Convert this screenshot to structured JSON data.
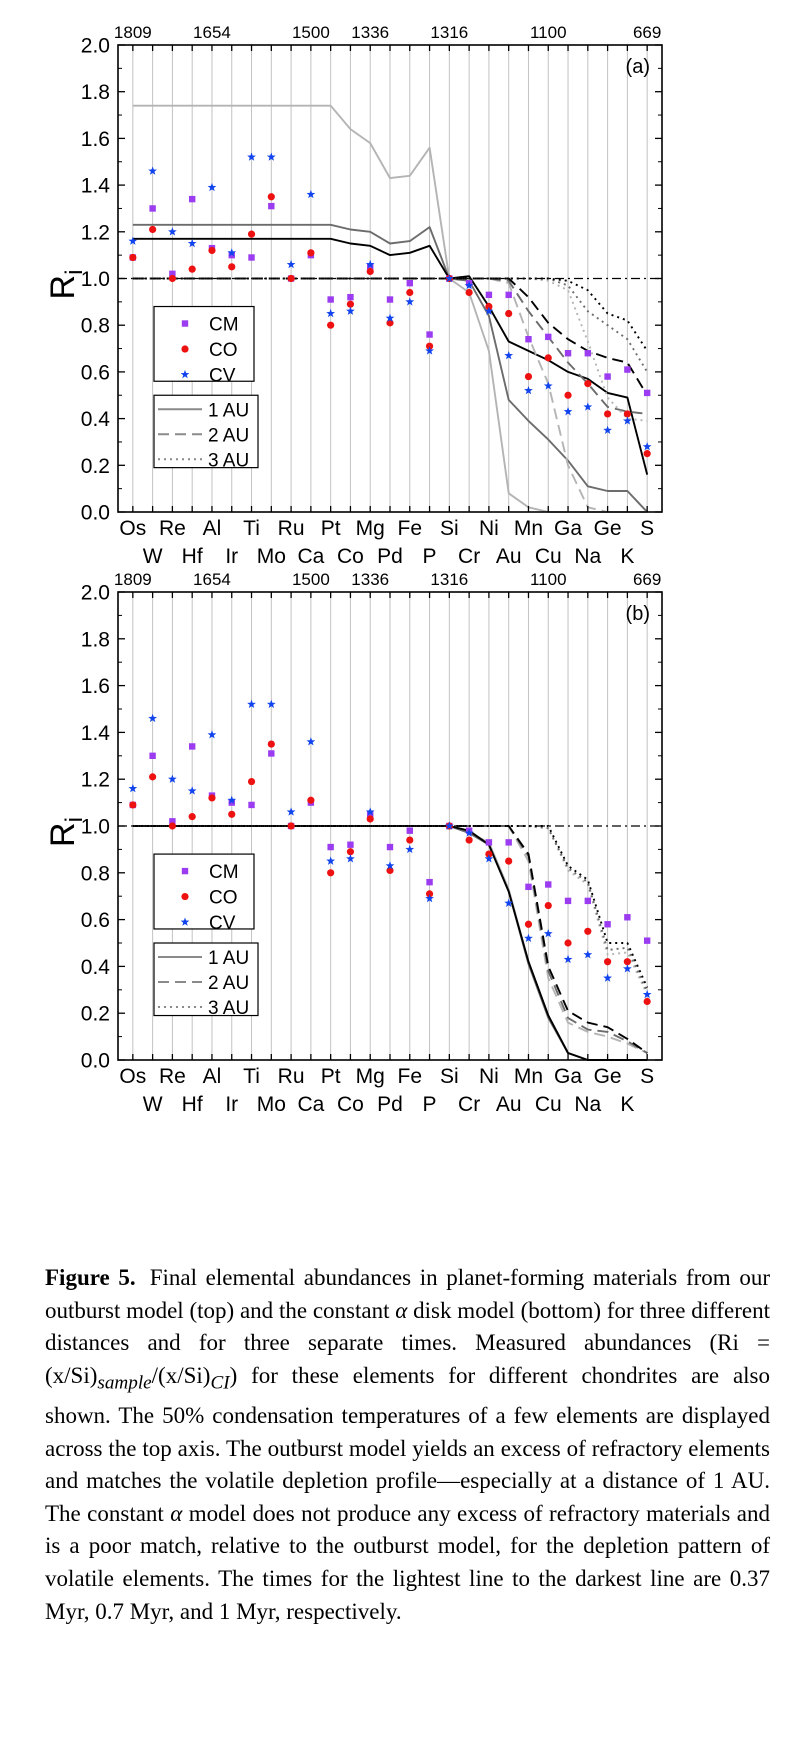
{
  "figure": {
    "elements": [
      "Os",
      "W",
      "Re",
      "Hf",
      "Al",
      "Ir",
      "Ti",
      "Mo",
      "Ru",
      "Ca",
      "Pt",
      "Co",
      "Mg",
      "Pd",
      "Fe",
      "P",
      "Si",
      "Cr",
      "Ni",
      "Au",
      "Mn",
      "Cu",
      "Ga",
      "Na",
      "Ge",
      "K",
      "S"
    ],
    "temp_labels": [
      {
        "element": "Os",
        "label": "1809"
      },
      {
        "element": "Al",
        "label": "1654"
      },
      {
        "element": "Ca",
        "label": "1500"
      },
      {
        "element": "Mg",
        "label": "1336"
      },
      {
        "element": "Si",
        "label": "1316"
      },
      {
        "element": "Cu",
        "label": "1100"
      },
      {
        "element": "S",
        "label": "669"
      }
    ],
    "legend_markers": [
      {
        "name": "CM",
        "color": "#9b3cf0",
        "symbol": "square"
      },
      {
        "name": "CO",
        "color": "#ee1111",
        "symbol": "circle"
      },
      {
        "name": "CV",
        "color": "#1144ee",
        "symbol": "star"
      }
    ],
    "legend_lines": [
      {
        "name": "1 AU",
        "dash": "solid"
      },
      {
        "name": "2 AU",
        "dash": "dashed"
      },
      {
        "name": "3 AU",
        "dash": "dotted"
      }
    ],
    "caption": {
      "label": "Figure 5.",
      "text_before": "Final elemental abundances in planet-forming materials from our outburst model (top) and the constant ",
      "alpha1": "α",
      "text_mid1": " disk model (bottom) for three different distances and for three separate times. Measured abundances (Ri = (x/Si)",
      "sub_sample": "sample",
      "text_mid2": "/(x/Si)",
      "sub_ci": "CI",
      "text_mid3": ") for these elements for different chondrites are also shown. The 50% condensation temperatures of a few elements are displayed across the top axis. The outburst model yields an excess of refractory elements and matches the volatile depletion profile—especially at a distance of 1 AU. The constant ",
      "alpha2": "α",
      "text_end": " model does not produce any excess of refractory materials and is a poor match, relative to the outburst model, for the depletion pattern of volatile elements. The times for the lightest line to the darkest line are 0.37 Myr, 0.7 Myr, and 1 Myr, respectively."
    }
  },
  "chart_data": [
    {
      "type": "scatter",
      "panel_label": "(a)",
      "ylabel": "R",
      "ylabel_sub": "i",
      "ylim": [
        0,
        2.0
      ],
      "yticks": [
        "0.0",
        "0.2",
        "0.4",
        "0.6",
        "0.8",
        "1.0",
        "1.2",
        "1.4",
        "1.6",
        "1.8",
        "2.0"
      ],
      "grid": "vertical",
      "reference_line": 1.0,
      "legend_position": "left, below middle",
      "markers": {
        "CM": [
          1.09,
          1.3,
          1.02,
          1.34,
          1.13,
          1.1,
          1.09,
          1.31,
          1.0,
          1.1,
          0.91,
          0.92,
          1.05,
          0.91,
          0.98,
          0.76,
          1.0,
          0.98,
          0.93,
          0.93,
          0.74,
          0.75,
          0.68,
          0.68,
          0.58,
          0.61,
          0.51
        ],
        "CO": [
          1.09,
          1.21,
          1.0,
          1.04,
          1.12,
          1.05,
          1.19,
          1.35,
          1.0,
          1.11,
          0.8,
          0.89,
          1.03,
          0.81,
          0.94,
          0.71,
          1.0,
          0.94,
          0.88,
          0.85,
          0.58,
          0.66,
          0.5,
          0.55,
          0.42,
          0.42,
          0.25
        ],
        "CV": [
          1.16,
          1.46,
          1.2,
          1.15,
          1.39,
          1.11,
          1.52,
          1.52,
          1.06,
          1.36,
          0.85,
          0.86,
          1.06,
          0.83,
          0.9,
          0.69,
          1.0,
          0.97,
          0.86,
          0.67,
          0.52,
          0.54,
          0.43,
          0.45,
          0.35,
          0.39,
          0.28
        ]
      },
      "series": [
        {
          "name": "1 AU",
          "dash": "solid",
          "shade": "light",
          "values": [
            1.74,
            1.74,
            1.74,
            1.74,
            1.74,
            1.74,
            1.74,
            1.74,
            1.74,
            1.74,
            1.74,
            1.64,
            1.58,
            1.43,
            1.44,
            1.56,
            1.0,
            0.94,
            0.69,
            0.08,
            0.02,
            0.0,
            0.0,
            0.0,
            0.0,
            0.0,
            0.0
          ]
        },
        {
          "name": "1 AU",
          "dash": "solid",
          "shade": "medium",
          "values": [
            1.23,
            1.23,
            1.23,
            1.23,
            1.23,
            1.23,
            1.23,
            1.23,
            1.23,
            1.23,
            1.23,
            1.21,
            1.2,
            1.15,
            1.16,
            1.22,
            1.0,
            0.99,
            0.84,
            0.48,
            0.39,
            0.31,
            0.22,
            0.11,
            0.09,
            0.09,
            0.0
          ]
        },
        {
          "name": "1 AU",
          "dash": "solid",
          "shade": "dark",
          "values": [
            1.17,
            1.17,
            1.17,
            1.17,
            1.17,
            1.17,
            1.17,
            1.17,
            1.17,
            1.17,
            1.17,
            1.15,
            1.14,
            1.1,
            1.11,
            1.14,
            1.0,
            1.01,
            0.88,
            0.73,
            0.69,
            0.65,
            0.6,
            0.57,
            0.51,
            0.49,
            0.16
          ]
        },
        {
          "name": "2 AU",
          "dash": "dashed",
          "shade": "light",
          "values": [
            1.0,
            1.0,
            1.0,
            1.0,
            1.0,
            1.0,
            1.0,
            1.0,
            1.0,
            1.0,
            1.0,
            1.0,
            1.0,
            1.0,
            1.0,
            1.0,
            1.0,
            1.0,
            1.0,
            0.98,
            0.75,
            0.55,
            0.2,
            0.02,
            0.0,
            0.0,
            0.0
          ]
        },
        {
          "name": "2 AU",
          "dash": "dashed",
          "shade": "medium",
          "values": [
            1.0,
            1.0,
            1.0,
            1.0,
            1.0,
            1.0,
            1.0,
            1.0,
            1.0,
            1.0,
            1.0,
            1.0,
            1.0,
            1.0,
            1.0,
            1.0,
            1.0,
            1.0,
            1.0,
            0.99,
            0.86,
            0.75,
            0.64,
            0.55,
            0.45,
            0.43,
            0.42
          ]
        },
        {
          "name": "2 AU",
          "dash": "dashed",
          "shade": "dark",
          "values": [
            1.0,
            1.0,
            1.0,
            1.0,
            1.0,
            1.0,
            1.0,
            1.0,
            1.0,
            1.0,
            1.0,
            1.0,
            1.0,
            1.0,
            1.0,
            1.0,
            1.0,
            1.0,
            1.0,
            1.0,
            0.92,
            0.81,
            0.74,
            0.69,
            0.66,
            0.64,
            0.5
          ]
        },
        {
          "name": "3 AU",
          "dash": "dotted",
          "shade": "light",
          "values": [
            1.0,
            1.0,
            1.0,
            1.0,
            1.0,
            1.0,
            1.0,
            1.0,
            1.0,
            1.0,
            1.0,
            1.0,
            1.0,
            1.0,
            1.0,
            1.0,
            1.0,
            1.0,
            1.0,
            1.0,
            1.0,
            0.99,
            0.95,
            0.73,
            0.49,
            0.4,
            0.39
          ]
        },
        {
          "name": "3 AU",
          "dash": "dotted",
          "shade": "medium",
          "values": [
            1.0,
            1.0,
            1.0,
            1.0,
            1.0,
            1.0,
            1.0,
            1.0,
            1.0,
            1.0,
            1.0,
            1.0,
            1.0,
            1.0,
            1.0,
            1.0,
            1.0,
            1.0,
            1.0,
            1.0,
            1.0,
            1.0,
            0.97,
            0.86,
            0.8,
            0.74,
            0.6
          ]
        },
        {
          "name": "3 AU",
          "dash": "dotted",
          "shade": "dark",
          "values": [
            1.0,
            1.0,
            1.0,
            1.0,
            1.0,
            1.0,
            1.0,
            1.0,
            1.0,
            1.0,
            1.0,
            1.0,
            1.0,
            1.0,
            1.0,
            1.0,
            1.0,
            1.0,
            1.0,
            1.0,
            1.0,
            1.0,
            0.99,
            0.95,
            0.85,
            0.82,
            0.69
          ]
        }
      ]
    },
    {
      "type": "scatter",
      "panel_label": "(b)",
      "ylabel": "R",
      "ylabel_sub": "i",
      "ylim": [
        0,
        2.0
      ],
      "yticks": [
        "0.0",
        "0.2",
        "0.4",
        "0.6",
        "0.8",
        "1.0",
        "1.2",
        "1.4",
        "1.6",
        "1.8",
        "2.0"
      ],
      "grid": "vertical",
      "reference_line": 1.0,
      "legend_position": "left, below middle",
      "markers": {
        "CM": [
          1.09,
          1.3,
          1.02,
          1.34,
          1.13,
          1.1,
          1.09,
          1.31,
          1.0,
          1.1,
          0.91,
          0.92,
          1.05,
          0.91,
          0.98,
          0.76,
          1.0,
          0.98,
          0.93,
          0.93,
          0.74,
          0.75,
          0.68,
          0.68,
          0.58,
          0.61,
          0.51
        ],
        "CO": [
          1.09,
          1.21,
          1.0,
          1.04,
          1.12,
          1.05,
          1.19,
          1.35,
          1.0,
          1.11,
          0.8,
          0.89,
          1.03,
          0.81,
          0.94,
          0.71,
          1.0,
          0.94,
          0.88,
          0.85,
          0.58,
          0.66,
          0.5,
          0.55,
          0.42,
          0.42,
          0.25
        ],
        "CV": [
          1.16,
          1.46,
          1.2,
          1.15,
          1.39,
          1.11,
          1.52,
          1.52,
          1.06,
          1.36,
          0.85,
          0.86,
          1.06,
          0.83,
          0.9,
          0.69,
          1.0,
          0.97,
          0.86,
          0.67,
          0.52,
          0.54,
          0.43,
          0.45,
          0.35,
          0.39,
          0.28
        ]
      },
      "series": [
        {
          "name": "1 AU",
          "dash": "solid",
          "shade": "light",
          "values": [
            1.0,
            1.0,
            1.0,
            1.0,
            1.0,
            1.0,
            1.0,
            1.0,
            1.0,
            1.0,
            1.0,
            1.0,
            1.0,
            1.0,
            1.0,
            1.0,
            1.0,
            0.97,
            0.93,
            0.73,
            0.42,
            0.19,
            0.03,
            0.0,
            0.0,
            0.0,
            0.0
          ]
        },
        {
          "name": "1 AU",
          "dash": "solid",
          "shade": "medium",
          "values": [
            1.0,
            1.0,
            1.0,
            1.0,
            1.0,
            1.0,
            1.0,
            1.0,
            1.0,
            1.0,
            1.0,
            1.0,
            1.0,
            1.0,
            1.0,
            1.0,
            1.0,
            0.97,
            0.92,
            0.72,
            0.41,
            0.18,
            0.03,
            0.0,
            0.0,
            0.0,
            0.0
          ]
        },
        {
          "name": "1 AU",
          "dash": "solid",
          "shade": "dark",
          "values": [
            1.0,
            1.0,
            1.0,
            1.0,
            1.0,
            1.0,
            1.0,
            1.0,
            1.0,
            1.0,
            1.0,
            1.0,
            1.0,
            1.0,
            1.0,
            1.0,
            1.0,
            0.98,
            0.92,
            0.72,
            0.42,
            0.19,
            0.03,
            0.0,
            0.0,
            0.0,
            0.0
          ]
        },
        {
          "name": "2 AU",
          "dash": "dashed",
          "shade": "light",
          "values": [
            1.0,
            1.0,
            1.0,
            1.0,
            1.0,
            1.0,
            1.0,
            1.0,
            1.0,
            1.0,
            1.0,
            1.0,
            1.0,
            1.0,
            1.0,
            1.0,
            1.0,
            1.0,
            1.0,
            1.0,
            0.85,
            0.35,
            0.16,
            0.12,
            0.1,
            0.07,
            0.03
          ]
        },
        {
          "name": "2 AU",
          "dash": "dashed",
          "shade": "medium",
          "values": [
            1.0,
            1.0,
            1.0,
            1.0,
            1.0,
            1.0,
            1.0,
            1.0,
            1.0,
            1.0,
            1.0,
            1.0,
            1.0,
            1.0,
            1.0,
            1.0,
            1.0,
            1.0,
            1.0,
            1.0,
            0.87,
            0.38,
            0.18,
            0.13,
            0.12,
            0.08,
            0.03
          ]
        },
        {
          "name": "2 AU",
          "dash": "dashed",
          "shade": "dark",
          "values": [
            1.0,
            1.0,
            1.0,
            1.0,
            1.0,
            1.0,
            1.0,
            1.0,
            1.0,
            1.0,
            1.0,
            1.0,
            1.0,
            1.0,
            1.0,
            1.0,
            1.0,
            1.0,
            1.0,
            1.0,
            0.88,
            0.4,
            0.21,
            0.16,
            0.14,
            0.09,
            0.03
          ]
        },
        {
          "name": "3 AU",
          "dash": "dotted",
          "shade": "light",
          "values": [
            1.0,
            1.0,
            1.0,
            1.0,
            1.0,
            1.0,
            1.0,
            1.0,
            1.0,
            1.0,
            1.0,
            1.0,
            1.0,
            1.0,
            1.0,
            1.0,
            1.0,
            1.0,
            1.0,
            1.0,
            1.0,
            0.99,
            0.81,
            0.75,
            0.45,
            0.46,
            0.28
          ]
        },
        {
          "name": "3 AU",
          "dash": "dotted",
          "shade": "medium",
          "values": [
            1.0,
            1.0,
            1.0,
            1.0,
            1.0,
            1.0,
            1.0,
            1.0,
            1.0,
            1.0,
            1.0,
            1.0,
            1.0,
            1.0,
            1.0,
            1.0,
            1.0,
            1.0,
            1.0,
            1.0,
            1.0,
            0.99,
            0.82,
            0.76,
            0.47,
            0.48,
            0.29
          ]
        },
        {
          "name": "3 AU",
          "dash": "dotted",
          "shade": "dark",
          "values": [
            1.0,
            1.0,
            1.0,
            1.0,
            1.0,
            1.0,
            1.0,
            1.0,
            1.0,
            1.0,
            1.0,
            1.0,
            1.0,
            1.0,
            1.0,
            1.0,
            1.0,
            1.0,
            1.0,
            1.0,
            1.0,
            1.0,
            0.83,
            0.77,
            0.5,
            0.5,
            0.31
          ]
        }
      ]
    }
  ]
}
